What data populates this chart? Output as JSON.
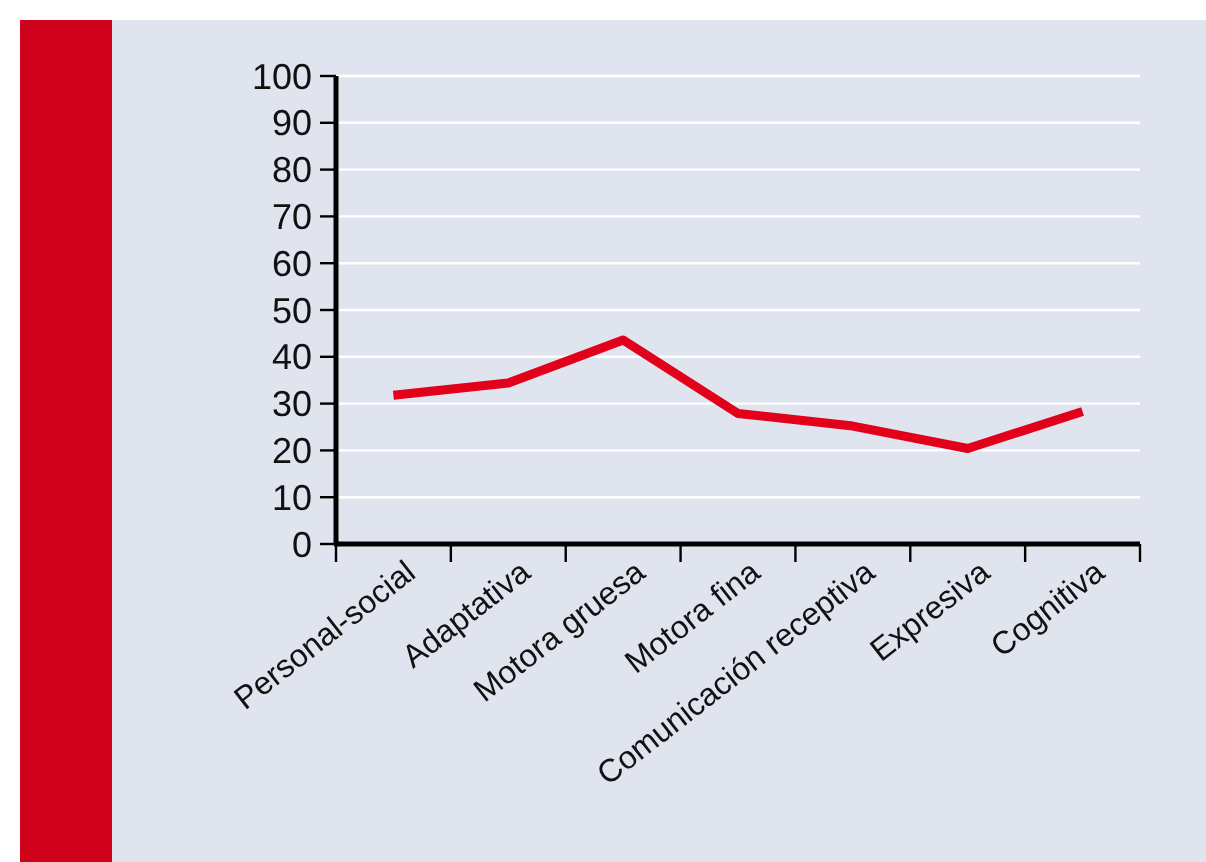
{
  "chart_data": {
    "type": "line",
    "categories": [
      "Personal-social",
      "Adaptativa",
      "Motora gruesa",
      "Motora fina",
      "Comunicación receptiva",
      "Expresiva",
      "Cognitiva"
    ],
    "series": [
      {
        "color": "#e2001a",
        "values": [
          31.8,
          34.4,
          43.6,
          27.9,
          25.2,
          20.4,
          28.3
        ]
      }
    ],
    "ylim": [
      0,
      100
    ],
    "yticks": [
      0,
      10,
      20,
      30,
      40,
      50,
      60,
      70,
      80,
      90,
      100
    ],
    "grid": "y",
    "marker": "none",
    "line_style": "solid"
  }
}
